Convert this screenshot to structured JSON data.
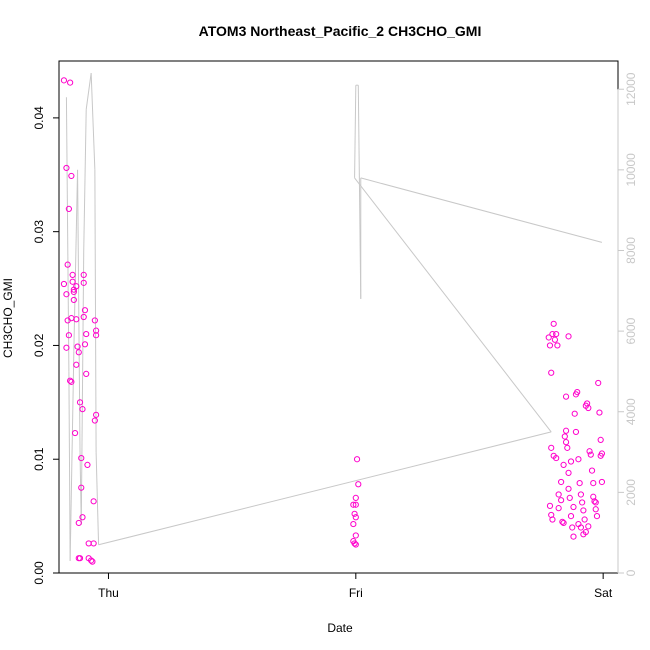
{
  "chart_data": {
    "type": "scatter",
    "title": "ATOM3 Northeast_Pacific_2 CH3CHO_GMI",
    "xlabel": "Date",
    "ylabel": "CH3CHO_GMI",
    "x_ticks": [
      "Thu",
      "Fri",
      "Sat"
    ],
    "x_range_days": [
      -0.2,
      2.06
    ],
    "ylim": [
      0,
      0.045
    ],
    "y_ticks": [
      0.0,
      0.01,
      0.02,
      0.03,
      0.04
    ],
    "y_tick_labels": [
      "0.00",
      "0.01",
      "0.02",
      "0.03",
      "0.04"
    ],
    "y2_ticks": [
      0,
      2000,
      4000,
      6000,
      8000,
      10000,
      12000
    ],
    "y2lim": [
      0,
      12700
    ],
    "grid": false,
    "colors": {
      "points": "#ff00cc",
      "altitude_line": "#c8c8c8",
      "right_axis": "#c8c8c8"
    },
    "series": [
      {
        "style": "points",
        "axis": "left",
        "points": [
          [
            -0.18,
            0.0433
          ],
          [
            -0.17,
            0.0356
          ],
          [
            -0.165,
            0.0271
          ],
          [
            -0.18,
            0.0254
          ],
          [
            -0.17,
            0.0245
          ],
          [
            -0.165,
            0.0222
          ],
          [
            -0.16,
            0.0209
          ],
          [
            -0.17,
            0.0198
          ],
          [
            -0.155,
            0.0431
          ],
          [
            -0.15,
            0.0349
          ],
          [
            -0.145,
            0.0262
          ],
          [
            -0.14,
            0.0249
          ],
          [
            -0.14,
            0.024
          ],
          [
            -0.15,
            0.0224
          ],
          [
            -0.155,
            0.0169
          ],
          [
            -0.16,
            0.032
          ],
          [
            -0.13,
            0.0252
          ],
          [
            -0.13,
            0.0223
          ],
          [
            -0.125,
            0.0199
          ],
          [
            -0.13,
            0.0183
          ],
          [
            -0.135,
            0.0123
          ],
          [
            -0.12,
            0.0044
          ],
          [
            -0.12,
            0.0013
          ],
          [
            -0.115,
            0.015
          ],
          [
            -0.11,
            0.0101
          ],
          [
            -0.11,
            0.0075
          ],
          [
            -0.105,
            0.0049
          ],
          [
            -0.1,
            0.0262
          ],
          [
            -0.1,
            0.0255
          ],
          [
            -0.095,
            0.0231
          ],
          [
            -0.1,
            0.0225
          ],
          [
            -0.095,
            0.0201
          ],
          [
            -0.09,
            0.021
          ],
          [
            -0.09,
            0.0175
          ],
          [
            -0.085,
            0.0095
          ],
          [
            -0.08,
            0.0026
          ],
          [
            -0.08,
            0.0013
          ],
          [
            -0.07,
            0.0011
          ],
          [
            -0.065,
            0.001
          ],
          [
            -0.06,
            0.0063
          ],
          [
            -0.055,
            0.0222
          ],
          [
            -0.05,
            0.0213
          ],
          [
            -0.05,
            0.0209
          ],
          [
            -0.05,
            0.0139
          ],
          [
            -0.055,
            0.0134
          ],
          [
            -0.06,
            0.0026
          ],
          [
            -0.145,
            0.0256
          ],
          [
            -0.12,
            0.0194
          ],
          [
            -0.15,
            0.0168
          ],
          [
            -0.14,
            0.0247
          ],
          [
            -0.105,
            0.0144
          ],
          [
            -0.115,
            0.0013
          ],
          [
            0.99,
            0.006
          ],
          [
            1.005,
            0.01
          ],
          [
            1.01,
            0.0078
          ],
          [
            1.0,
            0.0066
          ],
          [
            1.0,
            0.006
          ],
          [
            0.995,
            0.0052
          ],
          [
            1.0,
            0.0049
          ],
          [
            0.99,
            0.0043
          ],
          [
            1.0,
            0.0033
          ],
          [
            0.99,
            0.0028
          ],
          [
            0.995,
            0.0026
          ],
          [
            1.0,
            0.0025
          ],
          [
            1.78,
            0.0207
          ],
          [
            1.785,
            0.02
          ],
          [
            1.79,
            0.0176
          ],
          [
            1.795,
            0.021
          ],
          [
            1.8,
            0.0219
          ],
          [
            1.805,
            0.0205
          ],
          [
            1.81,
            0.021
          ],
          [
            1.815,
            0.02
          ],
          [
            1.79,
            0.011
          ],
          [
            1.8,
            0.0103
          ],
          [
            1.785,
            0.0059
          ],
          [
            1.79,
            0.0051
          ],
          [
            1.795,
            0.0047
          ],
          [
            1.81,
            0.0101
          ],
          [
            1.82,
            0.0069
          ],
          [
            1.83,
            0.008
          ],
          [
            1.835,
            0.0045
          ],
          [
            1.84,
            0.0044
          ],
          [
            1.845,
            0.012
          ],
          [
            1.85,
            0.0115
          ],
          [
            1.855,
            0.011
          ],
          [
            1.86,
            0.0088
          ],
          [
            1.865,
            0.0066
          ],
          [
            1.87,
            0.005
          ],
          [
            1.86,
            0.0208
          ],
          [
            1.85,
            0.0155
          ],
          [
            1.875,
            0.004
          ],
          [
            1.88,
            0.0032
          ],
          [
            1.885,
            0.014
          ],
          [
            1.89,
            0.0157
          ],
          [
            1.895,
            0.0159
          ],
          [
            1.89,
            0.0124
          ],
          [
            1.9,
            0.01
          ],
          [
            1.905,
            0.0079
          ],
          [
            1.91,
            0.0069
          ],
          [
            1.915,
            0.0062
          ],
          [
            1.92,
            0.0055
          ],
          [
            1.925,
            0.0047
          ],
          [
            1.93,
            0.0147
          ],
          [
            1.935,
            0.0149
          ],
          [
            1.94,
            0.0145
          ],
          [
            1.945,
            0.0107
          ],
          [
            1.95,
            0.0104
          ],
          [
            1.955,
            0.009
          ],
          [
            1.96,
            0.0079
          ],
          [
            1.965,
            0.0063
          ],
          [
            1.97,
            0.0056
          ],
          [
            1.975,
            0.005
          ],
          [
            1.98,
            0.0167
          ],
          [
            1.985,
            0.0141
          ],
          [
            1.99,
            0.0117
          ],
          [
            1.99,
            0.0103
          ],
          [
            1.995,
            0.0105
          ],
          [
            1.995,
            0.008
          ],
          [
            1.97,
            0.0062
          ],
          [
            1.96,
            0.0067
          ],
          [
            1.94,
            0.0041
          ],
          [
            1.93,
            0.0036
          ],
          [
            1.92,
            0.0034
          ],
          [
            1.91,
            0.004
          ],
          [
            1.9,
            0.0043
          ],
          [
            1.88,
            0.0058
          ],
          [
            1.86,
            0.0074
          ],
          [
            1.84,
            0.0095
          ],
          [
            1.85,
            0.0125
          ],
          [
            1.87,
            0.0098
          ],
          [
            1.82,
            0.0057
          ],
          [
            1.83,
            0.0064
          ]
        ]
      },
      {
        "style": "line",
        "axis": "right",
        "points": [
          [
            -0.17,
            11800
          ],
          [
            -0.16,
            5000
          ],
          [
            -0.155,
            300
          ],
          [
            -0.14,
            5500
          ],
          [
            -0.125,
            10000
          ],
          [
            -0.115,
            3000
          ],
          [
            -0.11,
            1200
          ],
          [
            -0.1,
            8000
          ],
          [
            -0.09,
            11500
          ],
          [
            -0.07,
            12400
          ],
          [
            -0.055,
            10000
          ],
          [
            -0.05,
            3000
          ],
          [
            -0.04,
            700
          ],
          [
            1.79,
            3500
          ],
          [
            0.995,
            9800
          ],
          [
            1.0,
            12100
          ],
          [
            1.01,
            12100
          ],
          [
            1.02,
            6800
          ],
          [
            1.02,
            9800
          ],
          [
            1.995,
            8200
          ]
        ]
      }
    ]
  }
}
